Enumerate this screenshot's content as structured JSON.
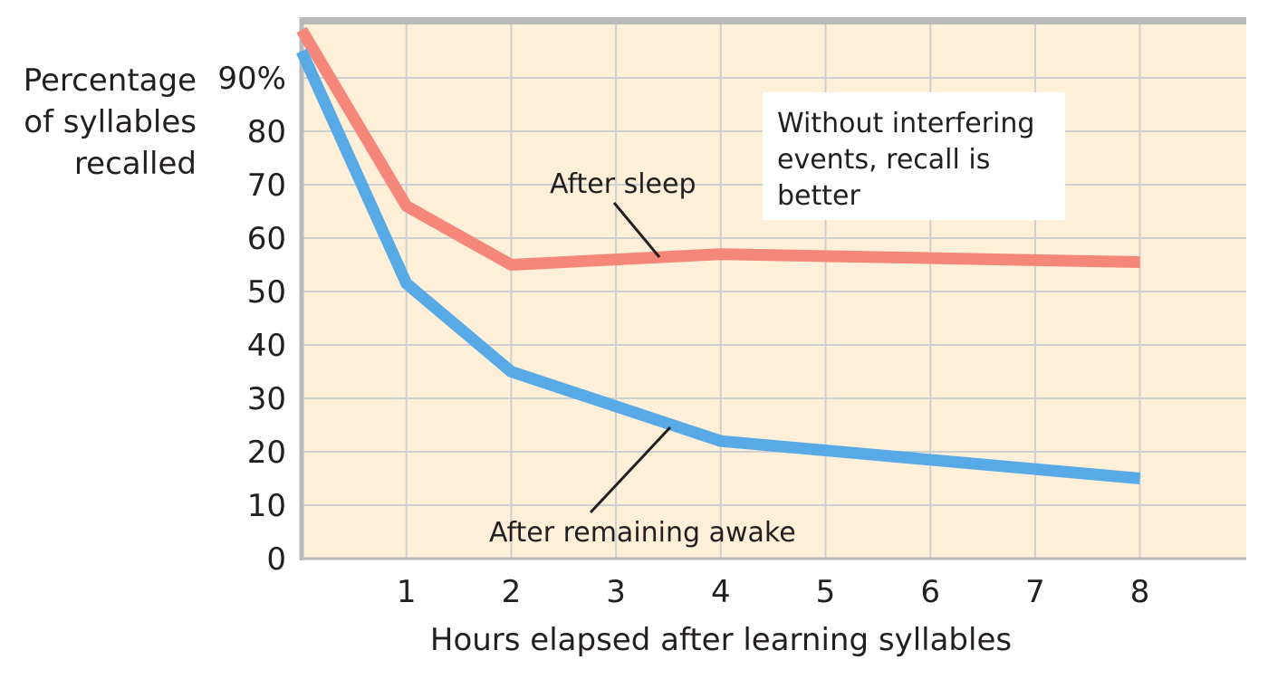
{
  "chart_data": {
    "type": "line",
    "title": "",
    "xlabel": "Hours elapsed after learning syllables",
    "ylabel_lines": [
      "Percentage",
      "of syllables",
      "recalled"
    ],
    "x_ticks": [
      "1",
      "2",
      "3",
      "4",
      "5",
      "6",
      "7",
      "8"
    ],
    "y_ticks": [
      "0",
      "10",
      "20",
      "30",
      "40",
      "50",
      "60",
      "70",
      "80",
      "90%"
    ],
    "xlim": [
      0,
      9
    ],
    "ylim": [
      0,
      100
    ],
    "grid": true,
    "background_color": "#fdefd8",
    "grid_color": "#cfcfcf",
    "axis_color": "#b9b9b9",
    "series": [
      {
        "name": "After sleep",
        "color": "#f4867a",
        "x": [
          0,
          1,
          2,
          4,
          8
        ],
        "y": [
          99,
          66,
          55,
          57,
          55.5
        ]
      },
      {
        "name": "After remaining awake",
        "color": "#58aae6",
        "x": [
          0,
          1,
          2,
          4,
          8
        ],
        "y": [
          95,
          51.5,
          35,
          22,
          15
        ]
      }
    ],
    "annotations": [
      {
        "text": "After sleep",
        "series": "After sleep",
        "position": "upper-middle"
      },
      {
        "text": "After remaining awake",
        "series": "After remaining awake",
        "position": "bottom-middle"
      },
      {
        "text_lines": [
          "Without interfering",
          "events, recall is",
          "better"
        ],
        "position": "top-right",
        "box_color": "#ffffff"
      }
    ]
  }
}
